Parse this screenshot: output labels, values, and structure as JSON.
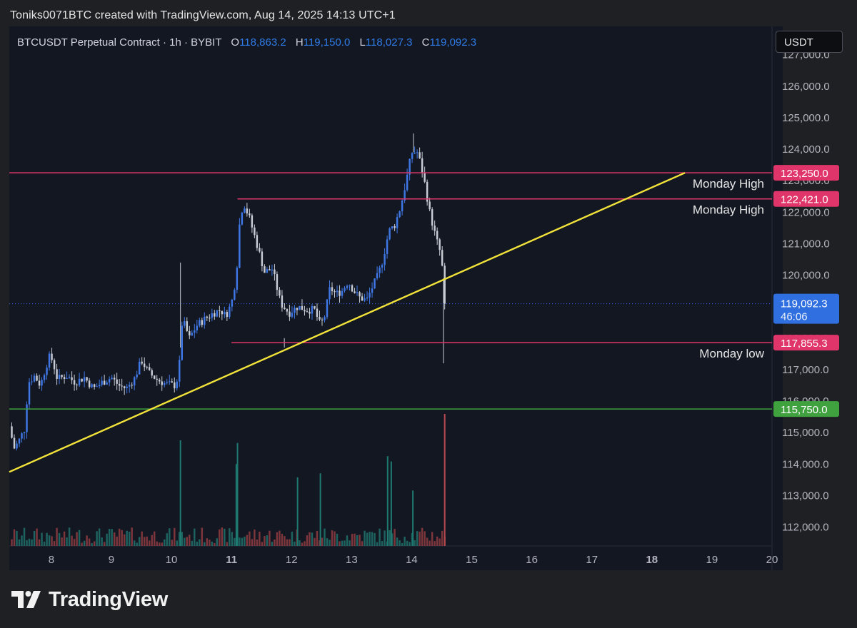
{
  "attribution": "Toniks0071BTC created with TradingView.com, Aug 14, 2025 14:13 UTC+1",
  "legend": {
    "symbol": "BTCUSDT Perpetual Contract · 1h · BYBIT",
    "open_label": "O",
    "open": "118,863.2",
    "high_label": "H",
    "high": "119,150.0",
    "low_label": "L",
    "low": "118,027.3",
    "close_label": "C",
    "close": "119,092.3"
  },
  "currency_button": "USDT",
  "logo_text": "TradingView",
  "colors": {
    "background": "#131722",
    "candle_up": "#3f78e6",
    "candle_down": "#c8ccd4",
    "resistance_line": "#e0356a",
    "support_line": "#3fa23f",
    "trendline": "#f2e33a",
    "current_price": "#2f6fe0"
  },
  "chart_data": {
    "type": "candlestick",
    "timeframe": "1h",
    "yaxis": {
      "range": [
        111400,
        127900
      ],
      "ticks": [
        "127,000.0",
        "126,000.0",
        "125,000.0",
        "124,000.0",
        "123,000.0",
        "122,000.0",
        "121,000.0",
        "120,000.0",
        "119,000.0",
        "118,000.0",
        "117,000.0",
        "116,000.0",
        "115,000.0",
        "114,000.0",
        "113,000.0",
        "112,000.0"
      ]
    },
    "xaxis": {
      "range": [
        7.3,
        20.0
      ],
      "ticks": [
        {
          "day": 8,
          "label": "8",
          "bold": false
        },
        {
          "day": 9,
          "label": "9",
          "bold": false
        },
        {
          "day": 10,
          "label": "10",
          "bold": false
        },
        {
          "day": 11,
          "label": "11",
          "bold": true
        },
        {
          "day": 12,
          "label": "12",
          "bold": false
        },
        {
          "day": 13,
          "label": "13",
          "bold": false
        },
        {
          "day": 14,
          "label": "14",
          "bold": false
        },
        {
          "day": 15,
          "label": "15",
          "bold": false
        },
        {
          "day": 16,
          "label": "16",
          "bold": false
        },
        {
          "day": 17,
          "label": "17",
          "bold": false
        },
        {
          "day": 18,
          "label": "18",
          "bold": true
        },
        {
          "day": 19,
          "label": "19",
          "bold": false
        },
        {
          "day": 20,
          "label": "20",
          "bold": false
        }
      ]
    },
    "price_path": [
      [
        7.3,
        115200
      ],
      [
        7.38,
        114500
      ],
      [
        7.45,
        114700
      ],
      [
        7.55,
        115100
      ],
      [
        7.62,
        116600
      ],
      [
        7.72,
        116800
      ],
      [
        7.82,
        116500
      ],
      [
        7.88,
        116900
      ],
      [
        7.96,
        117400
      ],
      [
        8.02,
        117300
      ],
      [
        8.1,
        116700
      ],
      [
        8.25,
        116800
      ],
      [
        8.4,
        116600
      ],
      [
        8.55,
        116750
      ],
      [
        8.7,
        116400
      ],
      [
        8.85,
        116600
      ],
      [
        9.0,
        116750
      ],
      [
        9.12,
        116500
      ],
      [
        9.25,
        116400
      ],
      [
        9.38,
        116700
      ],
      [
        9.5,
        117300
      ],
      [
        9.62,
        116900
      ],
      [
        9.75,
        116700
      ],
      [
        9.9,
        116550
      ],
      [
        10.05,
        116500
      ],
      [
        10.12,
        116800
      ],
      [
        10.18,
        118600
      ],
      [
        10.3,
        118000
      ],
      [
        10.42,
        118400
      ],
      [
        10.55,
        118600
      ],
      [
        10.7,
        118800
      ],
      [
        10.82,
        118900
      ],
      [
        10.9,
        118700
      ],
      [
        11.0,
        119100
      ],
      [
        11.08,
        120000
      ],
      [
        11.14,
        121800
      ],
      [
        11.2,
        122300
      ],
      [
        11.3,
        121800
      ],
      [
        11.42,
        121000
      ],
      [
        11.55,
        120100
      ],
      [
        11.68,
        120200
      ],
      [
        11.82,
        119100
      ],
      [
        11.96,
        118800
      ],
      [
        12.1,
        119000
      ],
      [
        12.25,
        118900
      ],
      [
        12.38,
        118900
      ],
      [
        12.48,
        118400
      ],
      [
        12.55,
        118700
      ],
      [
        12.64,
        119600
      ],
      [
        12.74,
        119400
      ],
      [
        12.84,
        119500
      ],
      [
        12.94,
        119800
      ],
      [
        13.04,
        119500
      ],
      [
        13.12,
        119300
      ],
      [
        13.25,
        119200
      ],
      [
        13.34,
        119600
      ],
      [
        13.44,
        120000
      ],
      [
        13.52,
        120500
      ],
      [
        13.62,
        121400
      ],
      [
        13.72,
        121600
      ],
      [
        13.82,
        122200
      ],
      [
        13.92,
        123100
      ],
      [
        14.0,
        123900
      ],
      [
        14.1,
        123900
      ],
      [
        14.2,
        123100
      ],
      [
        14.3,
        122000
      ],
      [
        14.4,
        121200
      ],
      [
        14.48,
        120700
      ],
      [
        14.53,
        119900
      ],
      [
        14.57,
        119092
      ]
    ],
    "spikes": [
      {
        "x": 10.15,
        "high": 120400
      },
      {
        "x": 11.88,
        "high": 118000,
        "low": 117700
      },
      {
        "x": 14.03,
        "high": 124500
      },
      {
        "x": 14.53,
        "low": 117200
      }
    ],
    "volume": [
      {
        "x": 10.15,
        "value": 0.8
      },
      {
        "x": 11.1,
        "value": 0.78
      },
      {
        "x": 11.08,
        "value": 0.62
      },
      {
        "x": 12.1,
        "value": 0.52
      },
      {
        "x": 12.48,
        "value": 0.55
      },
      {
        "x": 13.6,
        "value": 0.68
      },
      {
        "x": 13.66,
        "value": 0.64
      },
      {
        "x": 14.02,
        "value": 0.42
      },
      {
        "x": 14.55,
        "value": 1.0
      }
    ],
    "horizontal_levels": [
      {
        "price": 123250,
        "label": "123,250.0",
        "note": "Monday High",
        "color": "#e0356a",
        "from": 7.3,
        "to": 20.0
      },
      {
        "price": 122421,
        "label": "122,421.0",
        "note": "Monday High",
        "color": "#e0356a",
        "from": 11.1,
        "to": 20.0
      },
      {
        "price": 117855.3,
        "label": "117,855.3",
        "note": "Monday low",
        "color": "#e0356a",
        "from": 11.0,
        "to": 20.0
      },
      {
        "price": 115750,
        "label": "115,750.0",
        "note": "",
        "color": "#3fa23f",
        "from": 7.3,
        "to": 20.0
      }
    ],
    "current_price": {
      "price": 119092.3,
      "label": "119,092.3",
      "countdown": "46:06"
    },
    "trendline": {
      "from": [
        7.3,
        113750
      ],
      "to": [
        18.55,
        123250
      ]
    }
  }
}
